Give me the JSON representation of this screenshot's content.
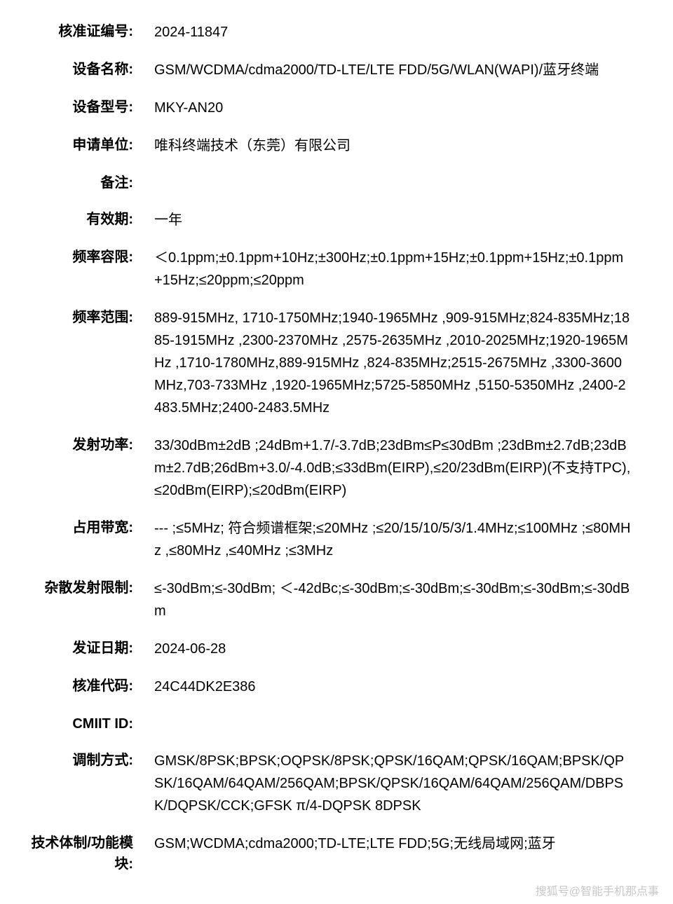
{
  "specs": [
    {
      "label": "核准证编号:",
      "value": "2024-11847"
    },
    {
      "label": "设备名称:",
      "value": "GSM/WCDMA/cdma2000/TD-LTE/LTE FDD/5G/WLAN(WAPI)/蓝牙终端"
    },
    {
      "label": "设备型号:",
      "value": "MKY-AN20"
    },
    {
      "label": "申请单位:",
      "value": "唯科终端技术（东莞）有限公司"
    },
    {
      "label": "备注:",
      "value": ""
    },
    {
      "label": "有效期:",
      "value": "一年"
    },
    {
      "label": "频率容限:",
      "value": "＜0.1ppm;±0.1ppm+10Hz;±300Hz;±0.1ppm+15Hz;±0.1ppm+15Hz;±0.1ppm+15Hz;≤20ppm;≤20ppm"
    },
    {
      "label": "频率范围:",
      "value": "889-915MHz, 1710-1750MHz;1940-1965MHz ,909-915MHz;824-835MHz;1885-1915MHz ,2300-2370MHz ,2575-2635MHz ,2010-2025MHz;1920-1965MHz ,1710-1780MHz,889-915MHz ,824-835MHz;2515-2675MHz ,3300-3600MHz,703-733MHz ,1920-1965MHz;5725-5850MHz ,5150-5350MHz ,2400-2483.5MHz;2400-2483.5MHz"
    },
    {
      "label": "发射功率:",
      "value": "33/30dBm±2dB ;24dBm+1.7/-3.7dB;23dBm≤P≤30dBm ;23dBm±2.7dB;23dBm±2.7dB;26dBm+3.0/-4.0dB;≤33dBm(EIRP),≤20/23dBm(EIRP)(不支持TPC),≤20dBm(EIRP);≤20dBm(EIRP)"
    },
    {
      "label": "占用带宽:",
      "value": "--- ;≤5MHz; 符合频谱框架;≤20MHz ;≤20/15/10/5/3/1.4MHz;≤100MHz ;≤80MHz ,≤80MHz ,≤40MHz ;≤3MHz"
    },
    {
      "label": "杂散发射限制:",
      "value": "≤-30dBm;≤-30dBm; ＜-42dBc;≤-30dBm;≤-30dBm;≤-30dBm;≤-30dBm;≤-30dBm"
    },
    {
      "label": "发证日期:",
      "value": "2024-06-28"
    },
    {
      "label": "核准代码:",
      "value": "24C44DK2E386"
    },
    {
      "label": "CMIIT ID:",
      "value": ""
    },
    {
      "label": "调制方式:",
      "value": "GMSK/8PSK;BPSK;OQPSK/8PSK;QPSK/16QAM;QPSK/16QAM;BPSK/QPSK/16QAM/64QAM/256QAM;BPSK/QPSK/16QAM/64QAM/256QAM/DBPSK/DQPSK/CCK;GFSK π/4-DQPSK 8DPSK"
    },
    {
      "label": "技术体制/功能模块:",
      "value": "GSM;WCDMA;cdma2000;TD-LTE;LTE FDD;5G;无线局域网;蓝牙"
    }
  ],
  "watermark": "搜狐号@智能手机那点事",
  "styling": {
    "background_color": "#ffffff",
    "text_color": "#000000",
    "label_fontsize": 20,
    "value_fontsize": 20,
    "label_weight": 700,
    "label_width": 200,
    "watermark_color": "#b0b0b0"
  }
}
